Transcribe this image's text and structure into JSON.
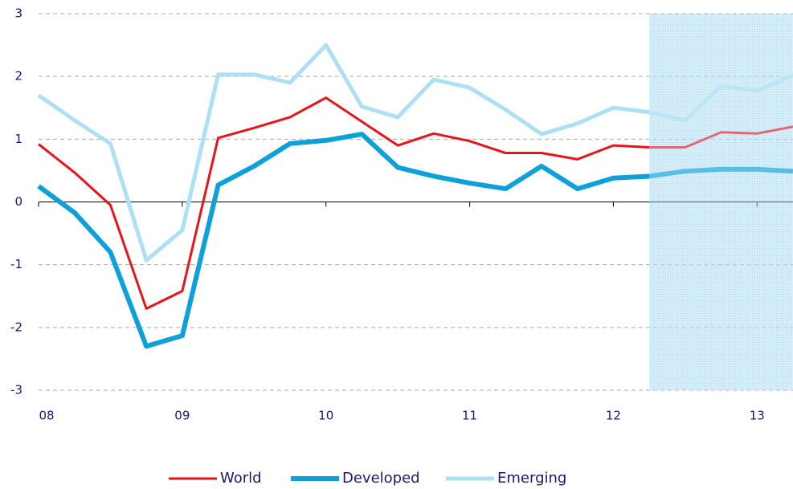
{
  "chart_data": {
    "type": "line",
    "x": [
      2008,
      2008.25,
      2008.5,
      2008.75,
      2009,
      2009.25,
      2009.5,
      2009.75,
      2010,
      2010.25,
      2010.5,
      2010.75,
      2011,
      2011.25,
      2011.5,
      2011.75,
      2012,
      2012.25,
      2012.5,
      2012.75,
      2013,
      2013.25
    ],
    "series": [
      {
        "name": "World",
        "color": "#e8141b",
        "width": 3,
        "values": [
          0.92,
          0.47,
          -0.05,
          -1.7,
          -1.42,
          1.02,
          1.18,
          1.35,
          1.66,
          1.28,
          0.9,
          1.09,
          0.97,
          0.78,
          0.78,
          0.68,
          0.9,
          0.87,
          0.87,
          1.11,
          1.09,
          1.2
        ]
      },
      {
        "name": "Developed",
        "color": "#0ea0d8",
        "width": 6,
        "values": [
          0.25,
          -0.17,
          -0.8,
          -2.3,
          -2.13,
          0.27,
          0.57,
          0.93,
          0.98,
          1.08,
          0.55,
          0.41,
          0.3,
          0.21,
          0.57,
          0.21,
          0.38,
          0.41,
          0.49,
          0.52,
          0.52,
          0.49
        ]
      },
      {
        "name": "Emerging",
        "color": "#aee0f4",
        "width": 5,
        "values": [
          1.7,
          1.3,
          0.93,
          -0.93,
          -0.45,
          2.03,
          2.03,
          1.9,
          2.5,
          1.52,
          1.35,
          1.95,
          1.82,
          1.47,
          1.08,
          1.25,
          1.5,
          1.43,
          1.3,
          1.85,
          1.77,
          2.02
        ]
      }
    ],
    "xlim": [
      2008,
      2013.25
    ],
    "xticks": [
      {
        "value": 2008,
        "label": "08"
      },
      {
        "value": 2009,
        "label": "09"
      },
      {
        "value": 2010,
        "label": "10"
      },
      {
        "value": 2011,
        "label": "11"
      },
      {
        "value": 2012,
        "label": "12"
      },
      {
        "value": 2013,
        "label": "13"
      }
    ],
    "ylim": [
      -3,
      3
    ],
    "yticks": [
      -3,
      -2,
      -1,
      0,
      1,
      2,
      3
    ],
    "grid": true,
    "legend": "bottom",
    "shade_from": 2012.25
  }
}
